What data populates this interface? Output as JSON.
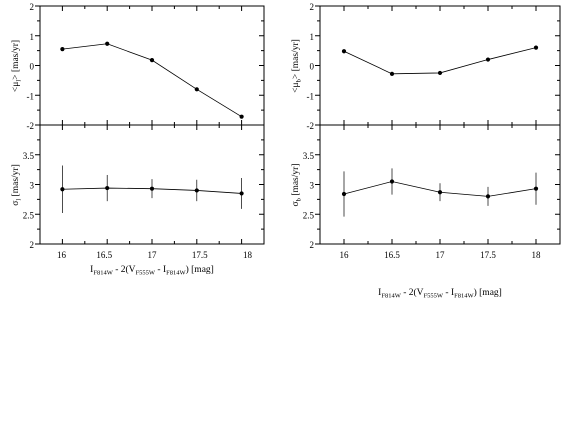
{
  "chart_data": [
    {
      "type": "line",
      "panel": "top-left",
      "x": [
        16,
        16.5,
        17,
        17.5,
        18
      ],
      "values": [
        0.55,
        0.73,
        0.18,
        -0.8,
        -1.72
      ],
      "xlim": [
        15.75,
        18.25
      ],
      "ylim": [
        -2,
        2
      ],
      "yticks": [
        "2",
        "1",
        "0",
        "-1",
        "-2"
      ],
      "ylabel": {
        "pre": "<μ",
        "sub": "l",
        "post": "> [mas/yr]"
      }
    },
    {
      "type": "line",
      "panel": "top-right",
      "x": [
        16,
        16.5,
        17,
        17.5,
        18
      ],
      "values": [
        0.48,
        -0.28,
        -0.25,
        0.2,
        0.6
      ],
      "xlim": [
        15.75,
        18.25
      ],
      "ylim": [
        -2,
        2
      ],
      "yticks": [
        "2",
        "1",
        "0",
        "-1",
        "-2"
      ],
      "ylabel": {
        "pre": "<μ",
        "sub": "b",
        "post": "> [mas/yr]"
      }
    },
    {
      "type": "line",
      "panel": "bottom-left",
      "x": [
        16,
        16.5,
        17,
        17.5,
        18
      ],
      "values": [
        2.92,
        2.94,
        2.93,
        2.9,
        2.85
      ],
      "errors": [
        0.4,
        0.22,
        0.16,
        0.18,
        0.26
      ],
      "xlim": [
        15.75,
        18.25
      ],
      "ylim": [
        2,
        4
      ],
      "yticks": [
        "3.5",
        "3",
        "2.5",
        "2"
      ],
      "xticks": [
        "16",
        "16.5",
        "17",
        "17.5",
        "18"
      ],
      "ylabel": {
        "pre": "σ",
        "sub": "l",
        "post": " [mas/yr]"
      },
      "xlabel": {
        "p1": "I",
        "s1": "F814W",
        "p2": " - 2(V",
        "s2": "F555W",
        "p3": " - I",
        "s3": "F814W",
        "p4": ") [mag]"
      }
    },
    {
      "type": "line",
      "panel": "bottom-right",
      "x": [
        16,
        16.5,
        17,
        17.5,
        18
      ],
      "values": [
        2.84,
        3.05,
        2.87,
        2.8,
        2.93
      ],
      "errors": [
        0.38,
        0.22,
        0.15,
        0.16,
        0.27
      ],
      "xlim": [
        15.75,
        18.25
      ],
      "ylim": [
        2,
        4
      ],
      "yticks": [
        "3.5",
        "3",
        "2.5",
        "2"
      ],
      "xticks": [
        "16",
        "16.5",
        "17",
        "17.5",
        "18"
      ],
      "ylabel": {
        "pre": "σ",
        "sub": "b",
        "post": " [mas/yr]"
      },
      "xlabel": {
        "p1": "I",
        "s1": "F814W",
        "p2": " - 2(V",
        "s2": "F555W",
        "p3": " - I",
        "s3": "F814W",
        "p4": ") [mag]"
      }
    }
  ]
}
